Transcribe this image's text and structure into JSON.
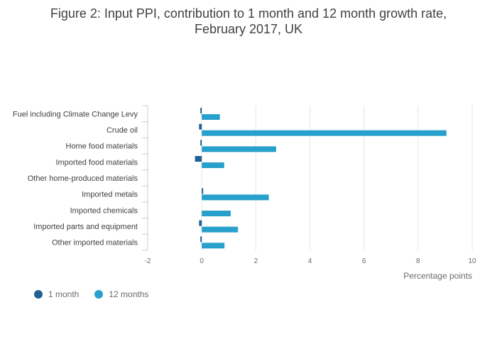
{
  "title_line1": "Figure 2: Input PPI, contribution to 1 month and 12 month growth rate,",
  "title_line2": "February 2017, UK",
  "chart_data": {
    "type": "bar",
    "orientation": "horizontal",
    "categories": [
      "Fuel including Climate Change Levy",
      "Crude oil",
      "Home food materials",
      "Imported food materials",
      "Other home-produced materials",
      "Imported metals",
      "Imported chemicals",
      "Imported parts and equipment",
      "Other imported materials"
    ],
    "series": [
      {
        "name": "1 month",
        "color": "#206095",
        "values": [
          -0.05,
          -0.1,
          -0.02,
          -0.25,
          0.0,
          0.05,
          0.0,
          -0.1,
          -0.02
        ]
      },
      {
        "name": "12 months",
        "color": "#27a0cc",
        "values": [
          0.67,
          9.05,
          2.75,
          0.83,
          0.0,
          2.48,
          1.07,
          1.34,
          0.84
        ]
      }
    ],
    "xlabel": "Percentage points",
    "ylabel": "",
    "xlim": [
      -2,
      10
    ],
    "xticks": [
      -2,
      0,
      2,
      4,
      6,
      8,
      10
    ],
    "grid": true,
    "legend_position": "bottom-left"
  }
}
